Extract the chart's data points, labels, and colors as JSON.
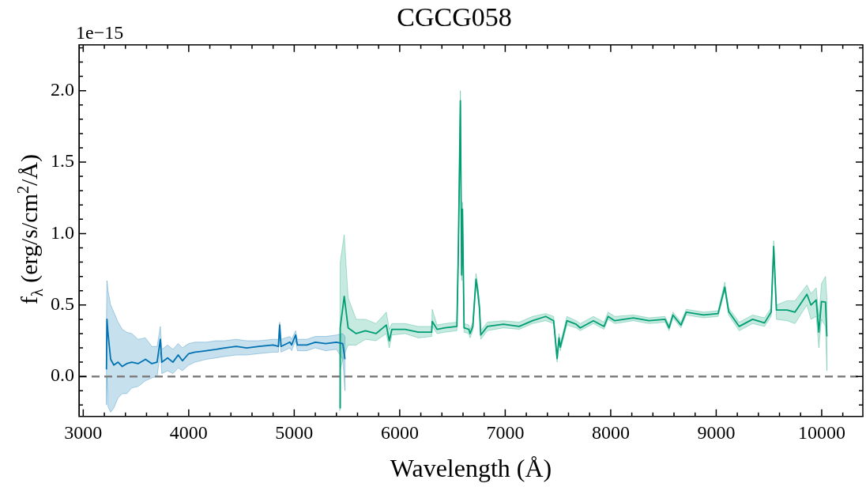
{
  "chart_data": {
    "type": "line",
    "title": "CGCG058",
    "xlabel": "Wavelength (Å)",
    "ylabel": "f$_{λ}$ (erg/s/cm$^{2}$/Å)",
    "annotations": [
      "1e−15"
    ],
    "xlim": [
      2960,
      10390
    ],
    "xticks": [
      3000,
      4000,
      5000,
      6000,
      7000,
      8000,
      9000,
      10000
    ],
    "ylim": [
      -0.28,
      2.32
    ],
    "yticks": [
      {
        "value": 0,
        "label": "0.0"
      },
      {
        "value": 0.5,
        "label": "0.5"
      },
      {
        "value": 1,
        "label": "1.0"
      },
      {
        "value": 1.5,
        "label": "1.5"
      },
      {
        "value": 2,
        "label": "2.0"
      }
    ],
    "grid": false,
    "legend": false,
    "marker": "none",
    "line_style": "solid",
    "ref_lines": [
      {
        "axis": "y",
        "value": 0,
        "color": "#808080",
        "line_style": "dashed"
      }
    ],
    "series": [
      {
        "color": "#0072b2",
        "x": [
          3220,
          3225,
          3235,
          3260,
          3290,
          3330,
          3370,
          3412,
          3460,
          3520,
          3590,
          3650,
          3700,
          3731,
          3745,
          3800,
          3850,
          3900,
          3940,
          4000,
          4060,
          4167,
          4260,
          4340,
          4450,
          4550,
          4667,
          4800,
          4850,
          4862,
          4875,
          4959,
          4975,
          5013,
          5030,
          5120,
          5200,
          5298,
          5400,
          5460,
          5481
        ],
        "values": [
          0.05,
          0.4,
          0.3,
          0.12,
          0.08,
          0.1,
          0.07,
          0.09,
          0.1,
          0.09,
          0.12,
          0.09,
          0.1,
          0.26,
          0.1,
          0.13,
          0.1,
          0.15,
          0.11,
          0.16,
          0.17,
          0.18,
          0.19,
          0.2,
          0.21,
          0.2,
          0.21,
          0.22,
          0.21,
          0.36,
          0.21,
          0.24,
          0.22,
          0.29,
          0.22,
          0.22,
          0.24,
          0.23,
          0.24,
          0.23,
          0.12
        ],
        "lower": [
          -0.2,
          0.0,
          -0.21,
          -0.25,
          -0.22,
          -0.15,
          -0.12,
          -0.12,
          -0.08,
          -0.07,
          -0.03,
          -0.01,
          0.0,
          0.17,
          0.02,
          0.04,
          0.02,
          0.06,
          0.04,
          0.08,
          0.1,
          0.12,
          0.13,
          0.14,
          0.15,
          0.15,
          0.16,
          0.17,
          0.17,
          0.32,
          0.17,
          0.2,
          0.18,
          0.25,
          0.18,
          0.18,
          0.2,
          0.18,
          0.19,
          0.12,
          -0.1
        ],
        "upper": [
          0.4,
          0.67,
          0.6,
          0.5,
          0.45,
          0.38,
          0.33,
          0.31,
          0.3,
          0.26,
          0.27,
          0.21,
          0.21,
          0.35,
          0.19,
          0.22,
          0.19,
          0.23,
          0.2,
          0.23,
          0.24,
          0.24,
          0.25,
          0.25,
          0.26,
          0.25,
          0.25,
          0.26,
          0.26,
          0.38,
          0.26,
          0.28,
          0.26,
          0.32,
          0.26,
          0.26,
          0.28,
          0.28,
          0.29,
          0.3,
          0.28
        ]
      },
      {
        "color": "#009e73",
        "x": [
          5432,
          5436,
          5474,
          5511,
          5587,
          5675,
          5775,
          5873,
          5901,
          5926,
          6052,
          6176,
          6303,
          6308,
          6354,
          6429,
          6542,
          6555,
          6575,
          6587,
          6595,
          6610,
          6655,
          6667,
          6693,
          6723,
          6738,
          6756,
          6768,
          6831,
          6982,
          7133,
          7259,
          7384,
          7459,
          7492,
          7510,
          7522,
          7585,
          7673,
          7711,
          7836,
          7937,
          7975,
          8038,
          8214,
          8364,
          8515,
          8553,
          8590,
          8666,
          8716,
          8880,
          9018,
          9081,
          9118,
          9218,
          9345,
          9458,
          9521,
          9545,
          9571,
          9672,
          9747,
          9860,
          9898,
          9948,
          9973,
          9998,
          10036,
          10049
        ],
        "values": [
          -0.22,
          0.34,
          0.56,
          0.34,
          0.3,
          0.32,
          0.3,
          0.36,
          0.25,
          0.33,
          0.33,
          0.31,
          0.31,
          0.385,
          0.33,
          0.34,
          0.35,
          0.84,
          1.93,
          0.71,
          1.17,
          0.34,
          0.33,
          0.3,
          0.35,
          0.68,
          0.61,
          0.48,
          0.29,
          0.35,
          0.365,
          0.35,
          0.39,
          0.42,
          0.39,
          0.125,
          0.27,
          0.205,
          0.39,
          0.365,
          0.34,
          0.39,
          0.35,
          0.42,
          0.39,
          0.41,
          0.39,
          0.4,
          0.34,
          0.43,
          0.36,
          0.45,
          0.43,
          0.44,
          0.625,
          0.455,
          0.35,
          0.4,
          0.375,
          0.45,
          0.91,
          0.465,
          0.465,
          0.45,
          0.575,
          0.5,
          0.535,
          0.31,
          0.525,
          0.52,
          0.28
        ],
        "lower": [
          -0.24,
          0.05,
          0.15,
          0.22,
          0.22,
          0.26,
          0.25,
          0.3,
          0.2,
          0.29,
          0.3,
          0.27,
          0.28,
          0.35,
          0.3,
          0.31,
          0.32,
          0.8,
          1.9,
          0.67,
          1.13,
          0.31,
          0.3,
          0.27,
          0.32,
          0.64,
          0.57,
          0.45,
          0.26,
          0.32,
          0.34,
          0.33,
          0.37,
          0.39,
          0.37,
          0.1,
          0.24,
          0.18,
          0.36,
          0.34,
          0.32,
          0.37,
          0.33,
          0.4,
          0.37,
          0.39,
          0.37,
          0.38,
          0.32,
          0.41,
          0.34,
          0.43,
          0.41,
          0.42,
          0.6,
          0.43,
          0.32,
          0.37,
          0.35,
          0.42,
          0.88,
          0.4,
          0.39,
          0.37,
          0.5,
          0.4,
          0.42,
          0.2,
          0.4,
          0.35,
          0.04
        ],
        "upper": [
          0.1,
          0.8,
          0.99,
          0.55,
          0.4,
          0.4,
          0.37,
          0.45,
          0.33,
          0.37,
          0.37,
          0.35,
          0.35,
          0.47,
          0.36,
          0.37,
          0.38,
          0.88,
          2.0,
          0.76,
          1.22,
          0.37,
          0.36,
          0.33,
          0.38,
          0.72,
          0.65,
          0.51,
          0.32,
          0.38,
          0.39,
          0.38,
          0.42,
          0.44,
          0.42,
          0.15,
          0.3,
          0.23,
          0.42,
          0.39,
          0.37,
          0.42,
          0.38,
          0.45,
          0.42,
          0.43,
          0.41,
          0.42,
          0.36,
          0.45,
          0.38,
          0.47,
          0.45,
          0.46,
          0.66,
          0.48,
          0.38,
          0.43,
          0.41,
          0.48,
          0.95,
          0.5,
          0.53,
          0.53,
          0.64,
          0.58,
          0.62,
          0.42,
          0.65,
          0.7,
          0.55
        ]
      }
    ]
  }
}
